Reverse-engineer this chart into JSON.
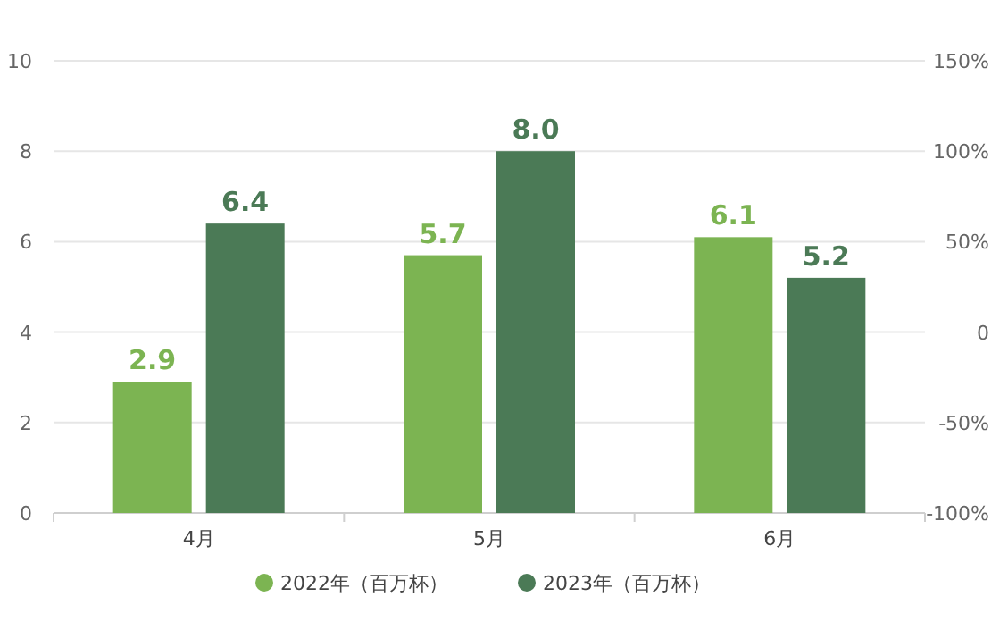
{
  "chart_data": {
    "type": "bar",
    "categories": [
      "4月",
      "5月",
      "6月"
    ],
    "series": [
      {
        "name": "2022年（百万杯）",
        "color": "#7cb452",
        "values": [
          2.9,
          5.7,
          6.1
        ],
        "value_labels": [
          "2.9",
          "5.7",
          "6.1"
        ]
      },
      {
        "name": "2023年（百万杯）",
        "color": "#4b7a56",
        "values": [
          6.4,
          8.0,
          5.2
        ],
        "value_labels": [
          "6.4",
          "8.0",
          "5.2"
        ]
      }
    ],
    "ylim": [
      0,
      10
    ],
    "yticks": [
      0,
      2,
      4,
      6,
      8,
      10
    ],
    "y2lim": [
      -100,
      150
    ],
    "y2ticks": [
      {
        "value": -100,
        "label": "-100%"
      },
      {
        "value": -50,
        "label": "-50%"
      },
      {
        "value": 0,
        "label": "0"
      },
      {
        "value": 50,
        "label": "50%"
      },
      {
        "value": 100,
        "label": "100%"
      },
      {
        "value": 150,
        "label": "150%"
      }
    ],
    "grid": "y",
    "legend": "bottom"
  }
}
